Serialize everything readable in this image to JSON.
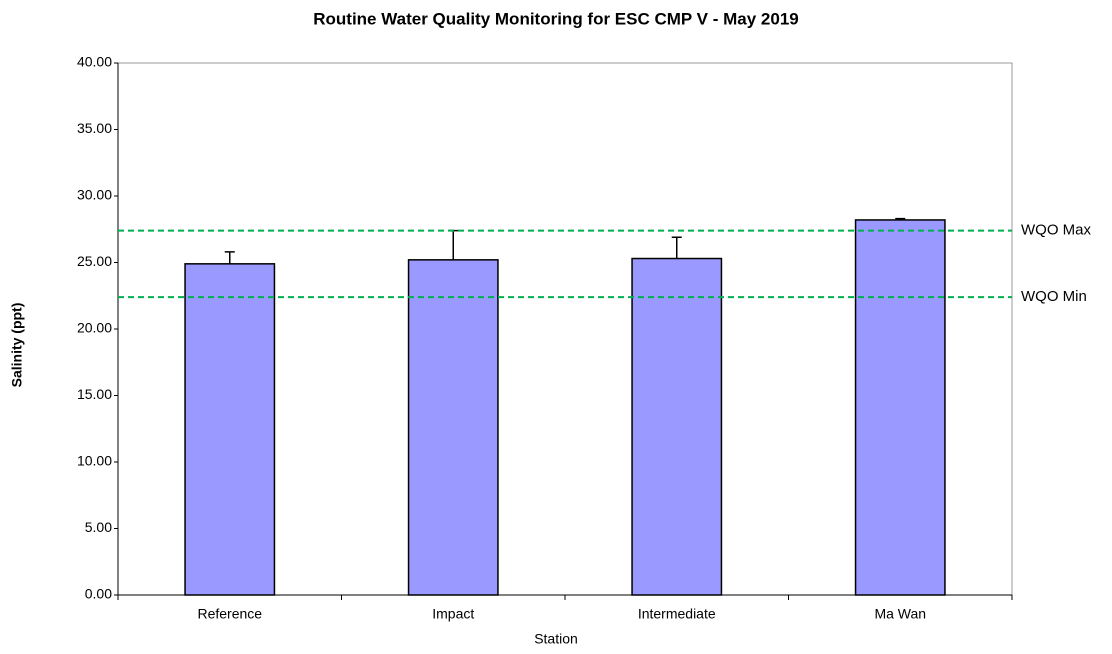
{
  "chart_data": {
    "type": "bar",
    "title": "Routine Water Quality Monitoring for ESC CMP V - May 2019",
    "x_label": "Station",
    "y_label": "Salinity (ppt)",
    "categories": [
      "Reference",
      "Impact",
      "Intermediate",
      "Ma Wan"
    ],
    "values": [
      24.9,
      25.2,
      25.3,
      28.2
    ],
    "errors": [
      0.9,
      2.2,
      1.6,
      0.1
    ],
    "color": "#9999ff",
    "ylim": [
      0,
      40
    ],
    "yticks": [
      {
        "value": 0,
        "label": "0.00"
      },
      {
        "value": 5,
        "label": "5.00"
      },
      {
        "value": 10,
        "label": "10.00"
      },
      {
        "value": 15,
        "label": "15.00"
      },
      {
        "value": 20,
        "label": "20.00"
      },
      {
        "value": 25,
        "label": "25.00"
      },
      {
        "value": 30,
        "label": "30.00"
      },
      {
        "value": 35,
        "label": "35.00"
      },
      {
        "value": 40,
        "label": "40.00"
      }
    ],
    "grid": false,
    "reference_lines": [
      {
        "label": "WQO Max",
        "value": 27.4,
        "color": "#00b050"
      },
      {
        "label": "WQO Min",
        "value": 22.4,
        "color": "#00b050"
      }
    ]
  }
}
